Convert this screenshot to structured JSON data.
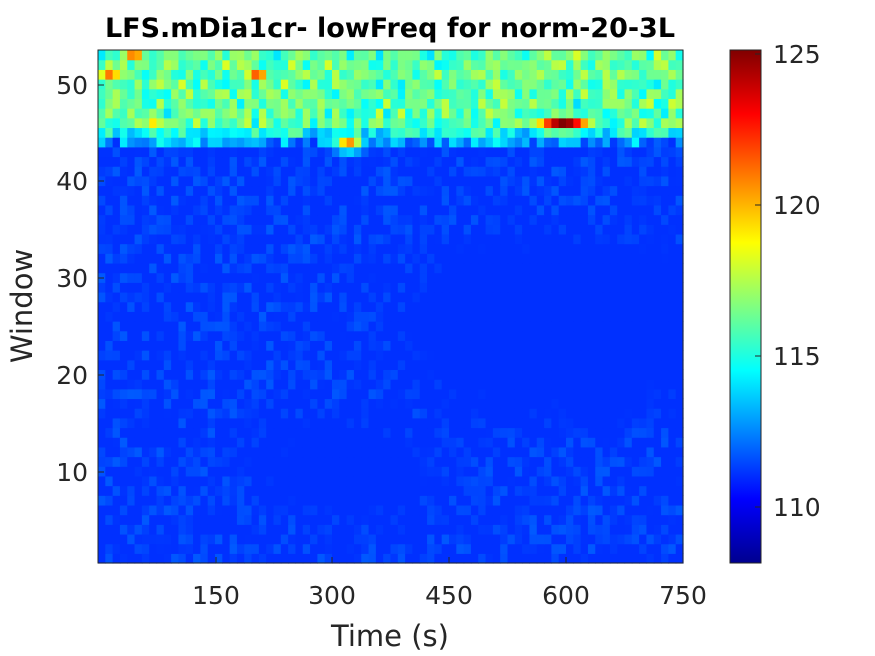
{
  "chart_data": {
    "type": "heatmap",
    "title": "LFS.mDia1cr- lowFreq for norm-20-3L",
    "xlabel": "Time (s)",
    "ylabel": "Window",
    "xlim": [
      15,
      750
    ],
    "ylim": [
      0.5,
      53.5
    ],
    "x_ticks": [
      "150",
      "300",
      "450",
      "600",
      "750"
    ],
    "y_ticks": [
      "10",
      "20",
      "30",
      "40",
      "50"
    ],
    "colorbar": {
      "colormap": "jet",
      "clim": [
        108.1,
        125
      ],
      "ticks": [
        "110",
        "115",
        "120",
        "125"
      ]
    },
    "window_range": [
      1,
      53
    ],
    "time_range": [
      15,
      750
    ],
    "value_summary": {
      "background_level": 111,
      "low_region": {
        "time": [
          450,
          750
        ],
        "window": [
          18,
          32
        ],
        "value": 108.8
      },
      "low_region_2": {
        "time": [
          230,
          420
        ],
        "window": [
          6,
          14
        ],
        "value": 109.6
      },
      "high_band": {
        "time": [
          15,
          750
        ],
        "window": [
          44,
          53
        ],
        "value": 116
      },
      "hot_spot": {
        "time": [
          560,
          640
        ],
        "window": [
          45,
          47
        ],
        "value": 125
      },
      "warm_spots": [
        {
          "time": 30,
          "window": 51,
          "value": 121
        },
        {
          "time": 215,
          "window": 51,
          "value": 121.5
        },
        {
          "time": 330,
          "window": 44,
          "value": 120.5
        },
        {
          "time": 85,
          "window": 46,
          "value": 119
        },
        {
          "time": 60,
          "window": 53,
          "value": 121
        }
      ]
    }
  }
}
